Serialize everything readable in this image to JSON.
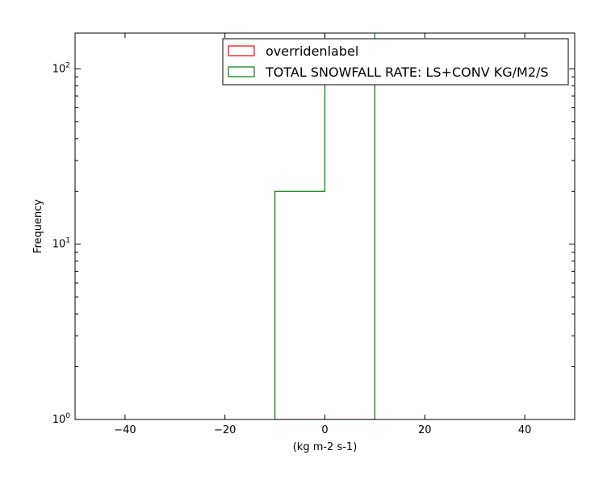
{
  "chart_data": {
    "type": "histogram",
    "xlabel": "(kg m-2 s-1)",
    "ylabel": "Frequency",
    "xlim": [
      -50,
      50
    ],
    "ylim": [
      1,
      160
    ],
    "yscale": "log",
    "x_ticks": [
      -40,
      -20,
      0,
      20,
      40
    ],
    "x_tick_labels": [
      "−40",
      "−20",
      "0",
      "20",
      "40"
    ],
    "y_ticks": [
      {
        "base": "10",
        "exp": "0",
        "value": 1
      },
      {
        "base": "10",
        "exp": "1",
        "value": 10
      },
      {
        "base": "10",
        "exp": "2",
        "value": 100
      }
    ],
    "legend_position": "top-right",
    "series": [
      {
        "name": "overridenlabel",
        "color": "#ff0000",
        "style": "step",
        "bins": [
          {
            "x0": -10,
            "x1": 0,
            "count": 1
          },
          {
            "x0": 0,
            "x1": 10,
            "count": 1
          }
        ]
      },
      {
        "name": "TOTAL SNOWFALL RATE: LS+CONV KG/M2/S",
        "color": "#008000",
        "style": "step",
        "bins": [
          {
            "x0": -10,
            "x1": 0,
            "count": 20
          },
          {
            "x0": 0,
            "x1": 10,
            "count": 180
          }
        ]
      }
    ]
  }
}
